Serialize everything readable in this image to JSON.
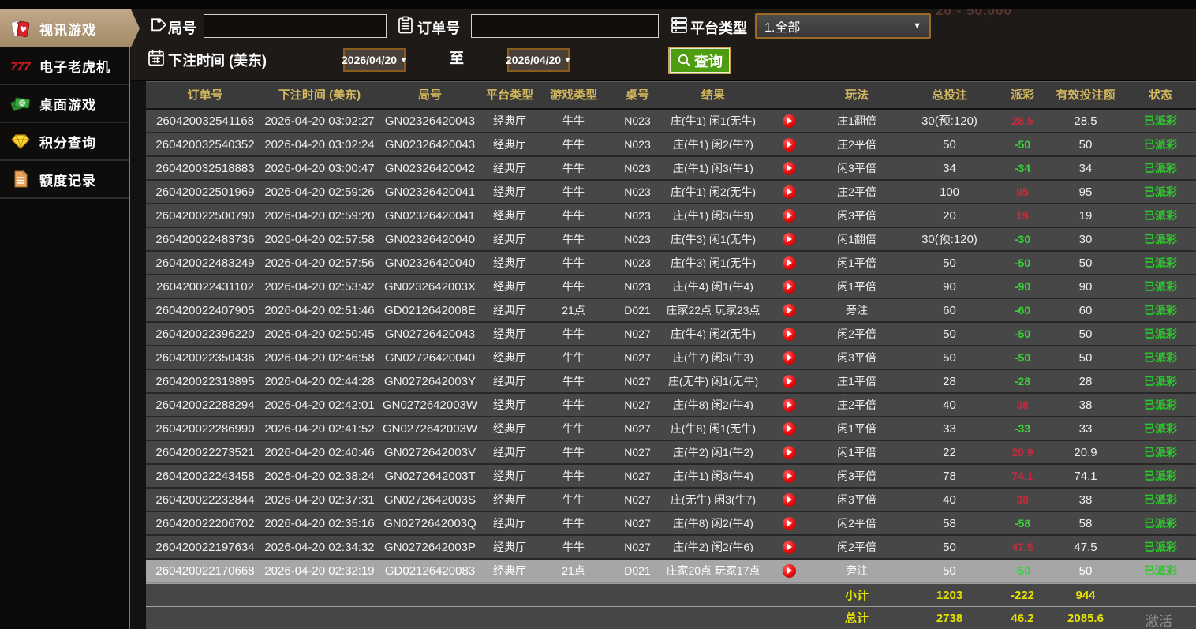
{
  "sidebar": {
    "items": [
      {
        "label": "视讯游戏",
        "icon": "cards-icon",
        "active": true
      },
      {
        "label": "电子老虎机",
        "icon": "slot-777-icon",
        "active": false
      },
      {
        "label": "桌面游戏",
        "icon": "money-icon",
        "active": false
      },
      {
        "label": "积分查询",
        "icon": "diamond-icon",
        "active": false
      },
      {
        "label": "额度记录",
        "icon": "document-icon",
        "active": false
      }
    ]
  },
  "filters": {
    "round_label": "局号",
    "order_label": "订单号",
    "platform_label": "平台类型",
    "platform_value": "1.全部",
    "bet_time_label": "下注时间 (美东)",
    "date_from": "2026/04/20",
    "date_to": "2026/04/20",
    "to_label": "至",
    "query_label": "查询"
  },
  "background": {
    "limit_text": "20 - 50,000",
    "watermark": "激活"
  },
  "table": {
    "headers": [
      "订单号",
      "下注时间 (美东)",
      "局号",
      "平台类型",
      "游戏类型",
      "桌号",
      "结果",
      "",
      "玩法",
      "总投注",
      "派彩",
      "有效投注额",
      "状态"
    ],
    "rows": [
      {
        "order": "260420032541168",
        "time": "2026-04-20 03:02:27",
        "round": "GN02326420043",
        "platform": "经典厅",
        "game": "牛牛",
        "table": "N023",
        "result": "庄(牛1) 闲1(无牛)",
        "play": "庄1翻倍",
        "total_bet": "30(预:120)",
        "payout": "28.5",
        "valid_bet": "28.5",
        "status": "已派彩",
        "highlighted": false
      },
      {
        "order": "260420032540352",
        "time": "2026-04-20 03:02:24",
        "round": "GN02326420043",
        "platform": "经典厅",
        "game": "牛牛",
        "table": "N023",
        "result": "庄(牛1) 闲2(牛7)",
        "play": "庄2平倍",
        "total_bet": "50",
        "payout": "-50",
        "valid_bet": "50",
        "status": "已派彩",
        "highlighted": false
      },
      {
        "order": "260420032518883",
        "time": "2026-04-20 03:00:47",
        "round": "GN02326420042",
        "platform": "经典厅",
        "game": "牛牛",
        "table": "N023",
        "result": "庄(牛1) 闲3(牛1)",
        "play": "闲3平倍",
        "total_bet": "34",
        "payout": "-34",
        "valid_bet": "34",
        "status": "已派彩",
        "highlighted": false
      },
      {
        "order": "260420022501969",
        "time": "2026-04-20 02:59:26",
        "round": "GN02326420041",
        "platform": "经典厅",
        "game": "牛牛",
        "table": "N023",
        "result": "庄(牛1) 闲2(无牛)",
        "play": "庄2平倍",
        "total_bet": "100",
        "payout": "95",
        "valid_bet": "95",
        "status": "已派彩",
        "highlighted": false
      },
      {
        "order": "260420022500790",
        "time": "2026-04-20 02:59:20",
        "round": "GN02326420041",
        "platform": "经典厅",
        "game": "牛牛",
        "table": "N023",
        "result": "庄(牛1) 闲3(牛9)",
        "play": "闲3平倍",
        "total_bet": "20",
        "payout": "19",
        "valid_bet": "19",
        "status": "已派彩",
        "highlighted": false
      },
      {
        "order": "260420022483736",
        "time": "2026-04-20 02:57:58",
        "round": "GN02326420040",
        "platform": "经典厅",
        "game": "牛牛",
        "table": "N023",
        "result": "庄(牛3) 闲1(无牛)",
        "play": "闲1翻倍",
        "total_bet": "30(预:120)",
        "payout": "-30",
        "valid_bet": "30",
        "status": "已派彩",
        "highlighted": false
      },
      {
        "order": "260420022483249",
        "time": "2026-04-20 02:57:56",
        "round": "GN02326420040",
        "platform": "经典厅",
        "game": "牛牛",
        "table": "N023",
        "result": "庄(牛3) 闲1(无牛)",
        "play": "闲1平倍",
        "total_bet": "50",
        "payout": "-50",
        "valid_bet": "50",
        "status": "已派彩",
        "highlighted": false
      },
      {
        "order": "260420022431102",
        "time": "2026-04-20 02:53:42",
        "round": "GN0232642003X",
        "platform": "经典厅",
        "game": "牛牛",
        "table": "N023",
        "result": "庄(牛4) 闲1(牛4)",
        "play": "闲1平倍",
        "total_bet": "90",
        "payout": "-90",
        "valid_bet": "90",
        "status": "已派彩",
        "highlighted": false
      },
      {
        "order": "260420022407905",
        "time": "2026-04-20 02:51:46",
        "round": "GD0212642008E",
        "platform": "经典厅",
        "game": "21点",
        "table": "D021",
        "result": "庄家22点 玩家23点",
        "play": "旁注",
        "total_bet": "60",
        "payout": "-60",
        "valid_bet": "60",
        "status": "已派彩",
        "highlighted": false
      },
      {
        "order": "260420022396220",
        "time": "2026-04-20 02:50:45",
        "round": "GN02726420043",
        "platform": "经典厅",
        "game": "牛牛",
        "table": "N027",
        "result": "庄(牛4) 闲2(无牛)",
        "play": "闲2平倍",
        "total_bet": "50",
        "payout": "-50",
        "valid_bet": "50",
        "status": "已派彩",
        "highlighted": false
      },
      {
        "order": "260420022350436",
        "time": "2026-04-20 02:46:58",
        "round": "GN02726420040",
        "platform": "经典厅",
        "game": "牛牛",
        "table": "N027",
        "result": "庄(牛7) 闲3(牛3)",
        "play": "闲3平倍",
        "total_bet": "50",
        "payout": "-50",
        "valid_bet": "50",
        "status": "已派彩",
        "highlighted": false
      },
      {
        "order": "260420022319895",
        "time": "2026-04-20 02:44:28",
        "round": "GN0272642003Y",
        "platform": "经典厅",
        "game": "牛牛",
        "table": "N027",
        "result": "庄(无牛) 闲1(无牛)",
        "play": "庄1平倍",
        "total_bet": "28",
        "payout": "-28",
        "valid_bet": "28",
        "status": "已派彩",
        "highlighted": false
      },
      {
        "order": "260420022288294",
        "time": "2026-04-20 02:42:01",
        "round": "GN0272642003W",
        "platform": "经典厅",
        "game": "牛牛",
        "table": "N027",
        "result": "庄(牛8) 闲2(牛4)",
        "play": "庄2平倍",
        "total_bet": "40",
        "payout": "38",
        "valid_bet": "38",
        "status": "已派彩",
        "highlighted": false
      },
      {
        "order": "260420022286990",
        "time": "2026-04-20 02:41:52",
        "round": "GN0272642003W",
        "platform": "经典厅",
        "game": "牛牛",
        "table": "N027",
        "result": "庄(牛8) 闲1(无牛)",
        "play": "闲1平倍",
        "total_bet": "33",
        "payout": "-33",
        "valid_bet": "33",
        "status": "已派彩",
        "highlighted": false
      },
      {
        "order": "260420022273521",
        "time": "2026-04-20 02:40:46",
        "round": "GN0272642003V",
        "platform": "经典厅",
        "game": "牛牛",
        "table": "N027",
        "result": "庄(牛2) 闲1(牛2)",
        "play": "闲1平倍",
        "total_bet": "22",
        "payout": "20.9",
        "valid_bet": "20.9",
        "status": "已派彩",
        "highlighted": false
      },
      {
        "order": "260420022243458",
        "time": "2026-04-20 02:38:24",
        "round": "GN0272642003T",
        "platform": "经典厅",
        "game": "牛牛",
        "table": "N027",
        "result": "庄(牛1) 闲3(牛4)",
        "play": "闲3平倍",
        "total_bet": "78",
        "payout": "74.1",
        "valid_bet": "74.1",
        "status": "已派彩",
        "highlighted": false
      },
      {
        "order": "260420022232844",
        "time": "2026-04-20 02:37:31",
        "round": "GN0272642003S",
        "platform": "经典厅",
        "game": "牛牛",
        "table": "N027",
        "result": "庄(无牛) 闲3(牛7)",
        "play": "闲3平倍",
        "total_bet": "40",
        "payout": "38",
        "valid_bet": "38",
        "status": "已派彩",
        "highlighted": false
      },
      {
        "order": "260420022206702",
        "time": "2026-04-20 02:35:16",
        "round": "GN0272642003Q",
        "platform": "经典厅",
        "game": "牛牛",
        "table": "N027",
        "result": "庄(牛8) 闲2(牛4)",
        "play": "闲2平倍",
        "total_bet": "58",
        "payout": "-58",
        "valid_bet": "58",
        "status": "已派彩",
        "highlighted": false
      },
      {
        "order": "260420022197634",
        "time": "2026-04-20 02:34:32",
        "round": "GN0272642003P",
        "platform": "经典厅",
        "game": "牛牛",
        "table": "N027",
        "result": "庄(牛2) 闲2(牛6)",
        "play": "闲2平倍",
        "total_bet": "50",
        "payout": "47.5",
        "valid_bet": "47.5",
        "status": "已派彩",
        "highlighted": false
      },
      {
        "order": "260420022170668",
        "time": "2026-04-20 02:32:19",
        "round": "GD02126420083",
        "platform": "经典厅",
        "game": "21点",
        "table": "D021",
        "result": "庄家20点 玩家17点",
        "play": "旁注",
        "total_bet": "50",
        "payout": "-50",
        "valid_bet": "50",
        "status": "已派彩",
        "highlighted": true
      }
    ],
    "subtotal": {
      "label": "小计",
      "total_bet": "1203",
      "payout": "-222",
      "valid_bet": "944"
    },
    "grand_total": {
      "label": "总计",
      "total_bet": "2738",
      "payout": "46.2",
      "valid_bet": "2085.6"
    }
  },
  "colors": {
    "header_gold": "#d6b95e",
    "status_green": "#2bc92b",
    "payout_win_red": "#c62b3d",
    "payout_loss_green": "#3bd23b",
    "totals_yellow": "#e6e300",
    "active_tab_tan": "#b29a7c",
    "query_green": "#4e9c10",
    "date_border_brown": "#8a5c1e"
  }
}
